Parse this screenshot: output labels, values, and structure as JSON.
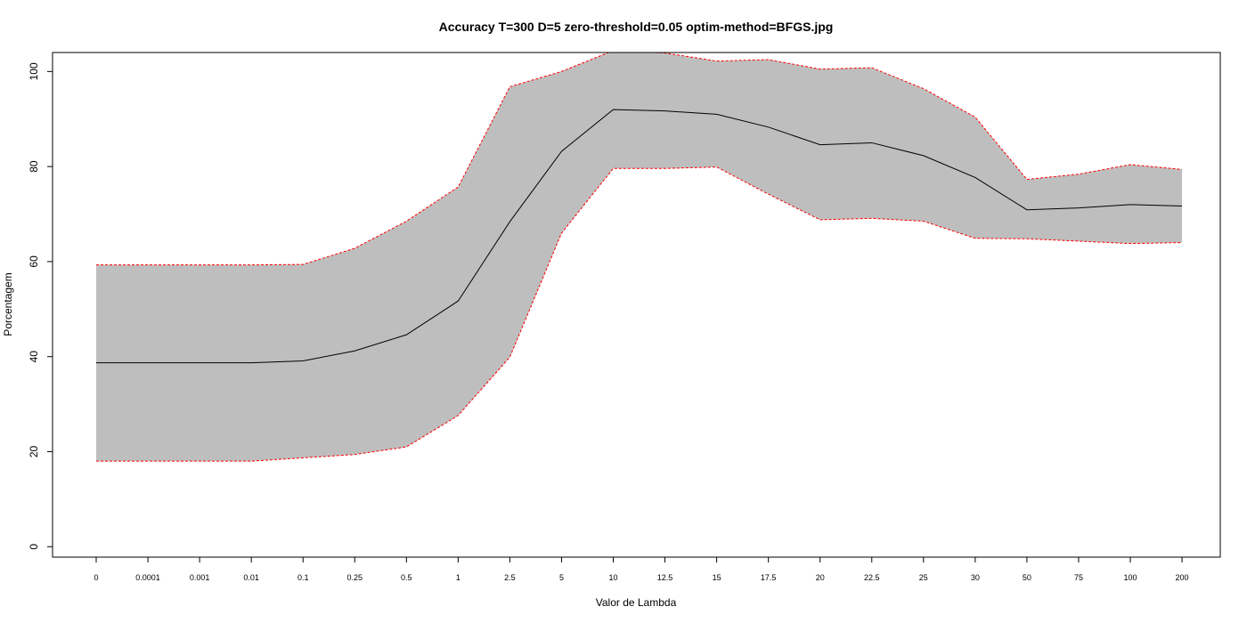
{
  "chart_data": {
    "type": "area",
    "title": "Accuracy T=300 D=5 zero-threshold=0.05 optim-method=BFGS.jpg",
    "xlabel": "Valor de Lambda",
    "ylabel": "Porcentagem",
    "categories": [
      "0",
      "0.0001",
      "0.001",
      "0.01",
      "0.1",
      "0.25",
      "0.5",
      "1",
      "2.5",
      "5",
      "10",
      "12.5",
      "15",
      "17.5",
      "20",
      "22.5",
      "25",
      "30",
      "50",
      "75",
      "100",
      "200"
    ],
    "y_ticks": [
      "0",
      "20",
      "40",
      "60",
      "80",
      "100"
    ],
    "ylim": [
      -2.2,
      104
    ],
    "grid": false,
    "series": [
      {
        "role": "mean",
        "color": "#000000",
        "values": [
          38.7,
          38.7,
          38.7,
          38.7,
          39.1,
          41.2,
          44.6,
          51.7,
          68.4,
          83.2,
          92.0,
          91.7,
          91.0,
          88.3,
          84.6,
          85.0,
          82.3,
          77.7,
          70.9,
          71.3,
          72.0,
          71.7
        ]
      },
      {
        "role": "upper",
        "color": "#ff0000",
        "values": [
          59.3,
          59.3,
          59.3,
          59.3,
          59.4,
          62.8,
          68.5,
          75.7,
          96.8,
          100.0,
          104.4,
          103.9,
          102.2,
          102.5,
          100.5,
          100.8,
          96.4,
          90.4,
          77.3,
          78.4,
          80.4,
          79.4
        ]
      },
      {
        "role": "lower",
        "color": "#ff0000",
        "values": [
          18.0,
          18.0,
          18.0,
          18.0,
          18.7,
          19.4,
          21.0,
          27.6,
          39.9,
          66.0,
          79.6,
          79.6,
          79.9,
          74.2,
          68.8,
          69.1,
          68.5,
          64.9,
          64.8,
          64.3,
          63.8,
          64.0
        ]
      }
    ],
    "band_color": "#bebebe"
  }
}
